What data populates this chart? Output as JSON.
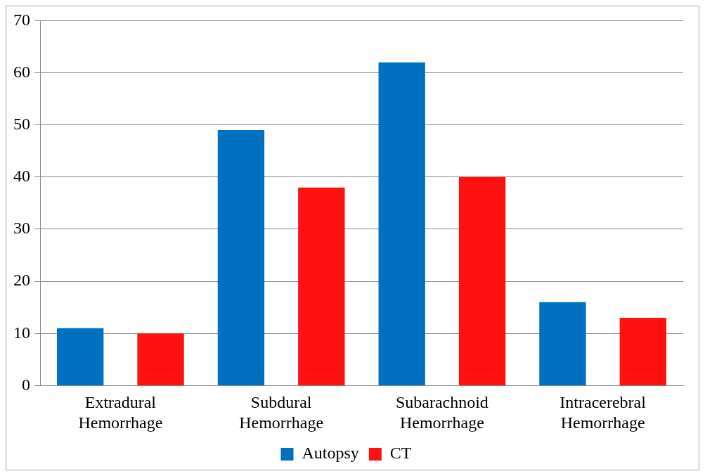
{
  "chart_data": {
    "type": "bar",
    "categories": [
      "Extradural Hemorrhage",
      "Subdural Hemorrhage",
      "Subarachnoid Hemorrhage",
      "Intracerebral Hemorrhage"
    ],
    "series": [
      {
        "name": "Autopsy",
        "color": "#0070c0",
        "values": [
          11,
          49,
          62,
          16
        ]
      },
      {
        "name": "CT",
        "color": "#ff1111",
        "values": [
          10,
          38,
          40,
          13
        ]
      }
    ],
    "ylim": [
      0,
      70
    ],
    "yticks": [
      0,
      10,
      20,
      30,
      40,
      50,
      60,
      70
    ],
    "grid": "y",
    "legend": "bottom"
  }
}
